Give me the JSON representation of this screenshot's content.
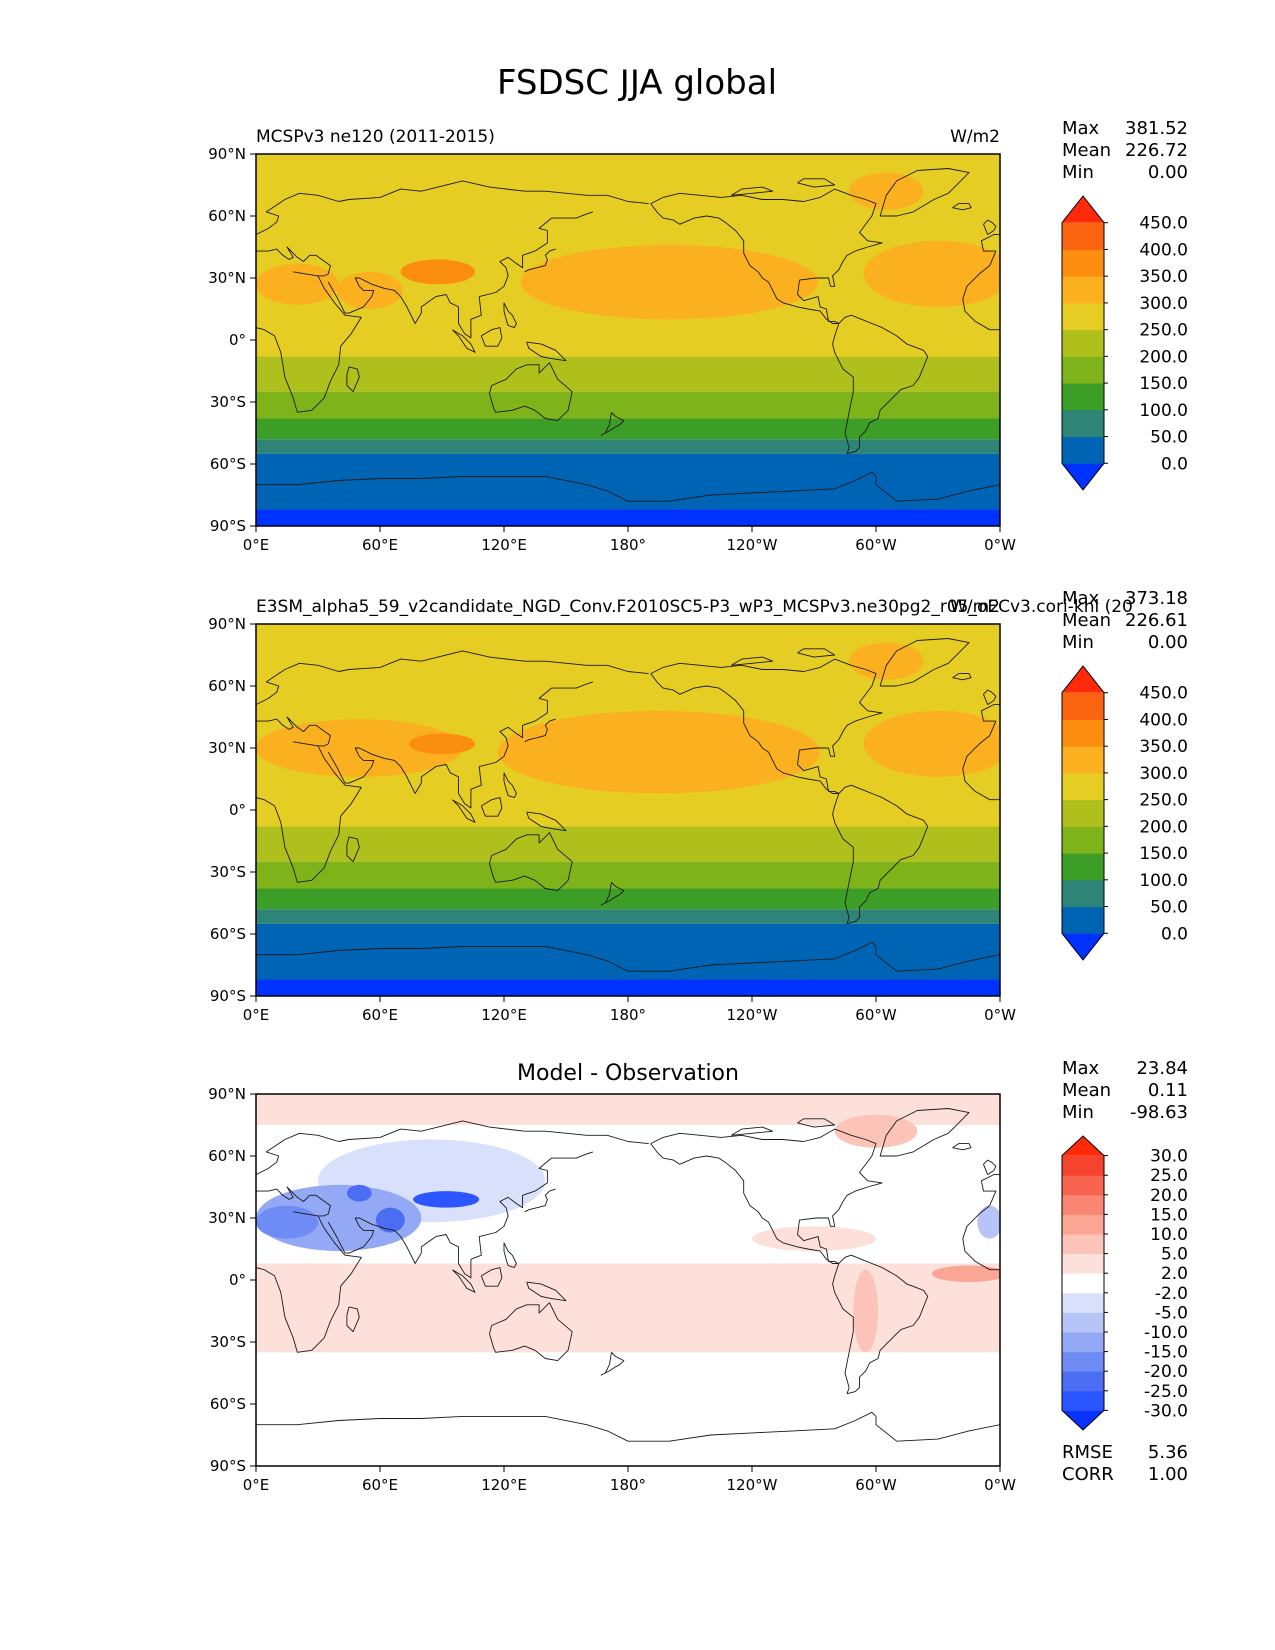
{
  "figure": {
    "title": "FSDSC JJA global"
  },
  "chart_data": [
    {
      "type": "heatmap",
      "panel": "test",
      "title_left": "MCSPv3 ne120 (2011-2015)",
      "title_right": "W/m2",
      "title_center": "",
      "stats": {
        "max_label": "Max",
        "max": "381.52",
        "mean_label": "Mean",
        "mean": "226.72",
        "min_label": "Min",
        "min": "0.00"
      },
      "extra_stats": [],
      "xticks": [
        "0°E",
        "60°E",
        "120°E",
        "180°",
        "120°W",
        "60°W",
        "0°W"
      ],
      "yticks": [
        "90°N",
        "60°N",
        "30°N",
        "0°",
        "30°S",
        "60°S",
        "90°S"
      ],
      "xlim": [
        0,
        360
      ],
      "ylim": [
        -90,
        90
      ],
      "colorbar": {
        "extend": "both",
        "under_color": "#0032ff",
        "over_color": "#ff2a0a",
        "levels": [
          "0.0",
          "50.0",
          "100.0",
          "150.0",
          "200.0",
          "250.0",
          "300.0",
          "350.0",
          "400.0",
          "450.0"
        ],
        "colors": [
          "#0064b4",
          "#2e8577",
          "#3c9e26",
          "#7eb41a",
          "#afc01d",
          "#e6cd23",
          "#fbb11f",
          "#fb8e0f",
          "#fa6411"
        ]
      },
      "field": {
        "bands": [
          {
            "lat": [
              -90,
              -82
            ],
            "color": "#0032ff"
          },
          {
            "lat": [
              -82,
              -55
            ],
            "color": "#0064b4"
          },
          {
            "lat": [
              -55,
              -48
            ],
            "color": "#2e8577"
          },
          {
            "lat": [
              -48,
              -38
            ],
            "color": "#3c9e26"
          },
          {
            "lat": [
              -38,
              -25
            ],
            "color": "#7eb41a"
          },
          {
            "lat": [
              -25,
              -8
            ],
            "color": "#afc01d"
          },
          {
            "lat": [
              -8,
              90
            ],
            "color": "#e6cd23"
          }
        ],
        "blobs": [
          {
            "lon": 200,
            "lat": 28,
            "rlon": 72,
            "rlat": 18,
            "color": "#fbb11f"
          },
          {
            "lon": 330,
            "lat": 32,
            "rlon": 36,
            "rlat": 16,
            "color": "#fbb11f"
          },
          {
            "lon": 305,
            "lat": 72,
            "rlon": 18,
            "rlat": 9,
            "color": "#fbb11f"
          },
          {
            "lon": 20,
            "lat": 27,
            "rlon": 20,
            "rlat": 10,
            "color": "#fbb11f"
          },
          {
            "lon": 55,
            "lat": 24,
            "rlon": 16,
            "rlat": 9,
            "color": "#fbb11f"
          },
          {
            "lon": 88,
            "lat": 33,
            "rlon": 18,
            "rlat": 6,
            "color": "#fb8e0f"
          }
        ]
      }
    },
    {
      "type": "heatmap",
      "panel": "reference",
      "title_left": "E3SM_alpha5_59_v2candidate_NGD_Conv.F2010SC5-P3_wP3_MCSPv3.ne30pg2_r05_oECv3.cori-knl (20",
      "title_right": "W/m2",
      "title_center": "",
      "stats": {
        "max_label": "Max",
        "max": "373.18",
        "mean_label": "Mean",
        "mean": "226.61",
        "min_label": "Min",
        "min": "0.00"
      },
      "extra_stats": [],
      "xticks": [
        "0°E",
        "60°E",
        "120°E",
        "180°",
        "120°W",
        "60°W",
        "0°W"
      ],
      "yticks": [
        "90°N",
        "60°N",
        "30°N",
        "0°",
        "30°S",
        "60°S",
        "90°S"
      ],
      "xlim": [
        0,
        360
      ],
      "ylim": [
        -90,
        90
      ],
      "colorbar": {
        "extend": "both",
        "under_color": "#0032ff",
        "over_color": "#ff2a0a",
        "levels": [
          "0.0",
          "50.0",
          "100.0",
          "150.0",
          "200.0",
          "250.0",
          "300.0",
          "350.0",
          "400.0",
          "450.0"
        ],
        "colors": [
          "#0064b4",
          "#2e8577",
          "#3c9e26",
          "#7eb41a",
          "#afc01d",
          "#e6cd23",
          "#fbb11f",
          "#fb8e0f",
          "#fa6411"
        ]
      },
      "field": {
        "bands": [
          {
            "lat": [
              -90,
              -82
            ],
            "color": "#0032ff"
          },
          {
            "lat": [
              -82,
              -55
            ],
            "color": "#0064b4"
          },
          {
            "lat": [
              -55,
              -48
            ],
            "color": "#2e8577"
          },
          {
            "lat": [
              -48,
              -38
            ],
            "color": "#3c9e26"
          },
          {
            "lat": [
              -38,
              -25
            ],
            "color": "#7eb41a"
          },
          {
            "lat": [
              -25,
              -8
            ],
            "color": "#afc01d"
          },
          {
            "lat": [
              -8,
              90
            ],
            "color": "#e6cd23"
          }
        ],
        "blobs": [
          {
            "lon": 195,
            "lat": 28,
            "rlon": 78,
            "rlat": 20,
            "color": "#fbb11f"
          },
          {
            "lon": 330,
            "lat": 32,
            "rlon": 36,
            "rlat": 16,
            "color": "#fbb11f"
          },
          {
            "lon": 305,
            "lat": 72,
            "rlon": 18,
            "rlat": 9,
            "color": "#fbb11f"
          },
          {
            "lon": 50,
            "lat": 30,
            "rlon": 50,
            "rlat": 14,
            "color": "#fbb11f"
          },
          {
            "lon": 90,
            "lat": 32,
            "rlon": 16,
            "rlat": 5,
            "color": "#fb8e0f"
          }
        ]
      }
    },
    {
      "type": "heatmap",
      "panel": "difference",
      "title_left": "",
      "title_right": "",
      "title_center": "Model - Observation",
      "stats": {
        "max_label": "Max",
        "max": "23.84",
        "mean_label": "Mean",
        "mean": "0.11",
        "min_label": "Min",
        "min": "-98.63"
      },
      "extra_stats": [
        {
          "label": "RMSE",
          "value": "5.36"
        },
        {
          "label": "CORR",
          "value": "1.00"
        }
      ],
      "xticks": [
        "0°E",
        "60°E",
        "120°E",
        "180°",
        "120°W",
        "60°W",
        "0°W"
      ],
      "yticks": [
        "90°N",
        "60°N",
        "30°N",
        "0°",
        "30°S",
        "60°S",
        "90°S"
      ],
      "xlim": [
        0,
        360
      ],
      "ylim": [
        -90,
        90
      ],
      "colorbar": {
        "extend": "both",
        "under_color": "#0a32ff",
        "over_color": "#ff2a0a",
        "levels": [
          "-30.0",
          "-25.0",
          "-20.0",
          "-15.0",
          "-10.0",
          "-5.0",
          "-2.0",
          "2.0",
          "5.0",
          "10.0",
          "15.0",
          "20.0",
          "25.0",
          "30.0"
        ],
        "colors": [
          "#2b55ff",
          "#4a6df2",
          "#6f8cf4",
          "#94a9f6",
          "#b6c4f8",
          "#d8e0fb",
          "#ffffff",
          "#fde0da",
          "#fcc3b8",
          "#fba594",
          "#f98672",
          "#f76550",
          "#f6432f"
        ]
      },
      "field": {
        "bands": [
          {
            "lat": [
              -90,
              90
            ],
            "color": "#ffffff"
          },
          {
            "lat": [
              -35,
              8
            ],
            "color": "#fde0da"
          },
          {
            "lat": [
              75,
              90
            ],
            "color": "#fde0da"
          }
        ],
        "blobs": [
          {
            "lon": 85,
            "lat": 48,
            "rlon": 55,
            "rlat": 20,
            "color": "#d8e0fb"
          },
          {
            "lon": 40,
            "lat": 30,
            "rlon": 40,
            "rlat": 16,
            "color": "#94a9f6"
          },
          {
            "lon": 15,
            "lat": 28,
            "rlon": 15,
            "rlat": 8,
            "color": "#6f8cf4"
          },
          {
            "lon": 92,
            "lat": 39,
            "rlon": 16,
            "rlat": 4,
            "color": "#2b55ff"
          },
          {
            "lon": 50,
            "lat": 42,
            "rlon": 6,
            "rlat": 4,
            "color": "#4a6df2"
          },
          {
            "lon": 65,
            "lat": 29,
            "rlon": 7,
            "rlat": 6,
            "color": "#4a6df2"
          },
          {
            "lon": 355,
            "lat": 28,
            "rlon": 6,
            "rlat": 8,
            "color": "#b6c4f8"
          },
          {
            "lon": 270,
            "lat": 20,
            "rlon": 30,
            "rlat": 6,
            "color": "#fde0da"
          },
          {
            "lon": 300,
            "lat": 72,
            "rlon": 20,
            "rlat": 8,
            "color": "#fcc3b8"
          },
          {
            "lon": 345,
            "lat": 3,
            "rlon": 18,
            "rlat": 4,
            "color": "#fba594"
          },
          {
            "lon": 295,
            "lat": -15,
            "rlon": 6,
            "rlat": 20,
            "color": "#fcc3b8"
          }
        ]
      }
    }
  ]
}
